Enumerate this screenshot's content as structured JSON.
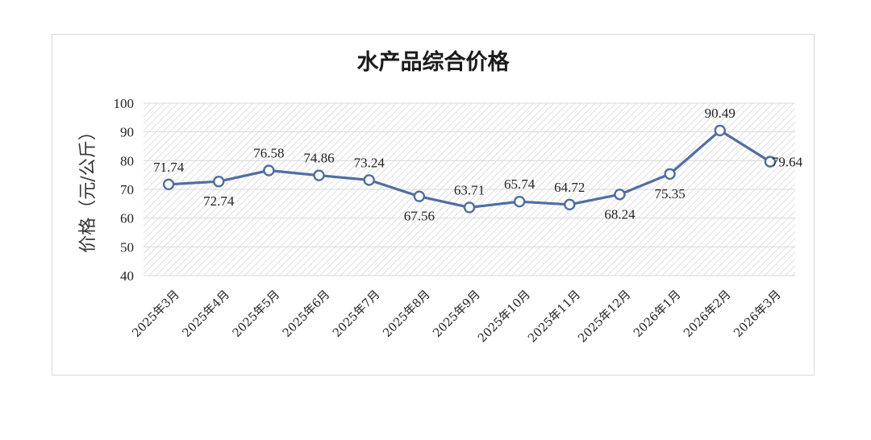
{
  "chart_data": {
    "type": "line",
    "title": "水产品综合价格",
    "ylabel": "价格（元/公斤）",
    "xlabel": "",
    "ylim": [
      40,
      100
    ],
    "yticks": [
      40,
      50,
      60,
      70,
      80,
      90,
      100
    ],
    "grid": true,
    "legend": "none",
    "categories": [
      "2025年3月",
      "2025年4月",
      "2025年5月",
      "2025年6月",
      "2025年7月",
      "2025年8月",
      "2025年9月",
      "2025年10月",
      "2025年11月",
      "2025年12月",
      "2026年1月",
      "2026年2月",
      "2026年3月"
    ],
    "series": [
      {
        "values": [
          71.74,
          72.74,
          76.58,
          74.86,
          73.24,
          67.56,
          63.71,
          65.74,
          64.72,
          68.24,
          75.35,
          90.49,
          79.64
        ]
      }
    ],
    "colors": {
      "line": "#4f6fa3",
      "marker_fill": "#ffffff",
      "grid": "#d9d9d9",
      "hatch": "#d4d4d4"
    }
  }
}
